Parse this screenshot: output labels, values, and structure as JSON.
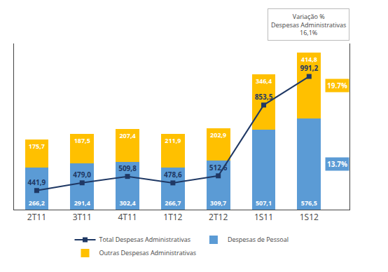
{
  "chart_data": {
    "type": "bar",
    "stacked": true,
    "data_labels": true,
    "grid": false,
    "legend": "bottom",
    "tick_labels": "x",
    "categories": [
      "2T11",
      "3T11",
      "4T11",
      "1T12",
      "2T12",
      "1S11",
      "1S12"
    ],
    "series": [
      {
        "name": "Total Despesas Administrativas",
        "type": "line",
        "axis": "y2",
        "color": "#1F3864",
        "marker": "square",
        "values": [
          441.9,
          479.0,
          509.8,
          478.6,
          512.6,
          853.5,
          991.2
        ],
        "value_labels": [
          "441,9",
          "479,0",
          "509,8",
          "478,6",
          "512,6",
          "853,5",
          "991,2"
        ]
      },
      {
        "name": "Despesas de Pessoal",
        "type": "bar",
        "color": "#5B9BD5",
        "values": [
          266.2,
          291.4,
          302.4,
          266.7,
          309.7,
          507.1,
          576.5
        ],
        "value_labels": [
          "266,2",
          "291,4",
          "302,4",
          "266,7",
          "309,7",
          "507,1",
          "576,5"
        ]
      },
      {
        "name": "Outras Despesas Administrativas",
        "type": "bar",
        "color": "#FFC000",
        "values": [
          175.7,
          187.5,
          207.4,
          211.9,
          202.9,
          346.4,
          414.8
        ],
        "value_labels": [
          "175,7",
          "187,5",
          "207,4",
          "211,9",
          "202,9",
          "346,4",
          "414,8"
        ]
      }
    ],
    "ylim": [
      0,
      1050
    ],
    "y2lim": [
      350,
      1150
    ],
    "annotations": [
      {
        "text": "19.7%",
        "series": "Outras Despesas Administrativas",
        "category": "1S12"
      },
      {
        "text": "13.7%",
        "series": "Despesas de Pessoal",
        "category": "1S12"
      },
      {
        "lines": [
          "Variação %",
          "Despesas Administrativas",
          "16,1%"
        ]
      }
    ]
  }
}
